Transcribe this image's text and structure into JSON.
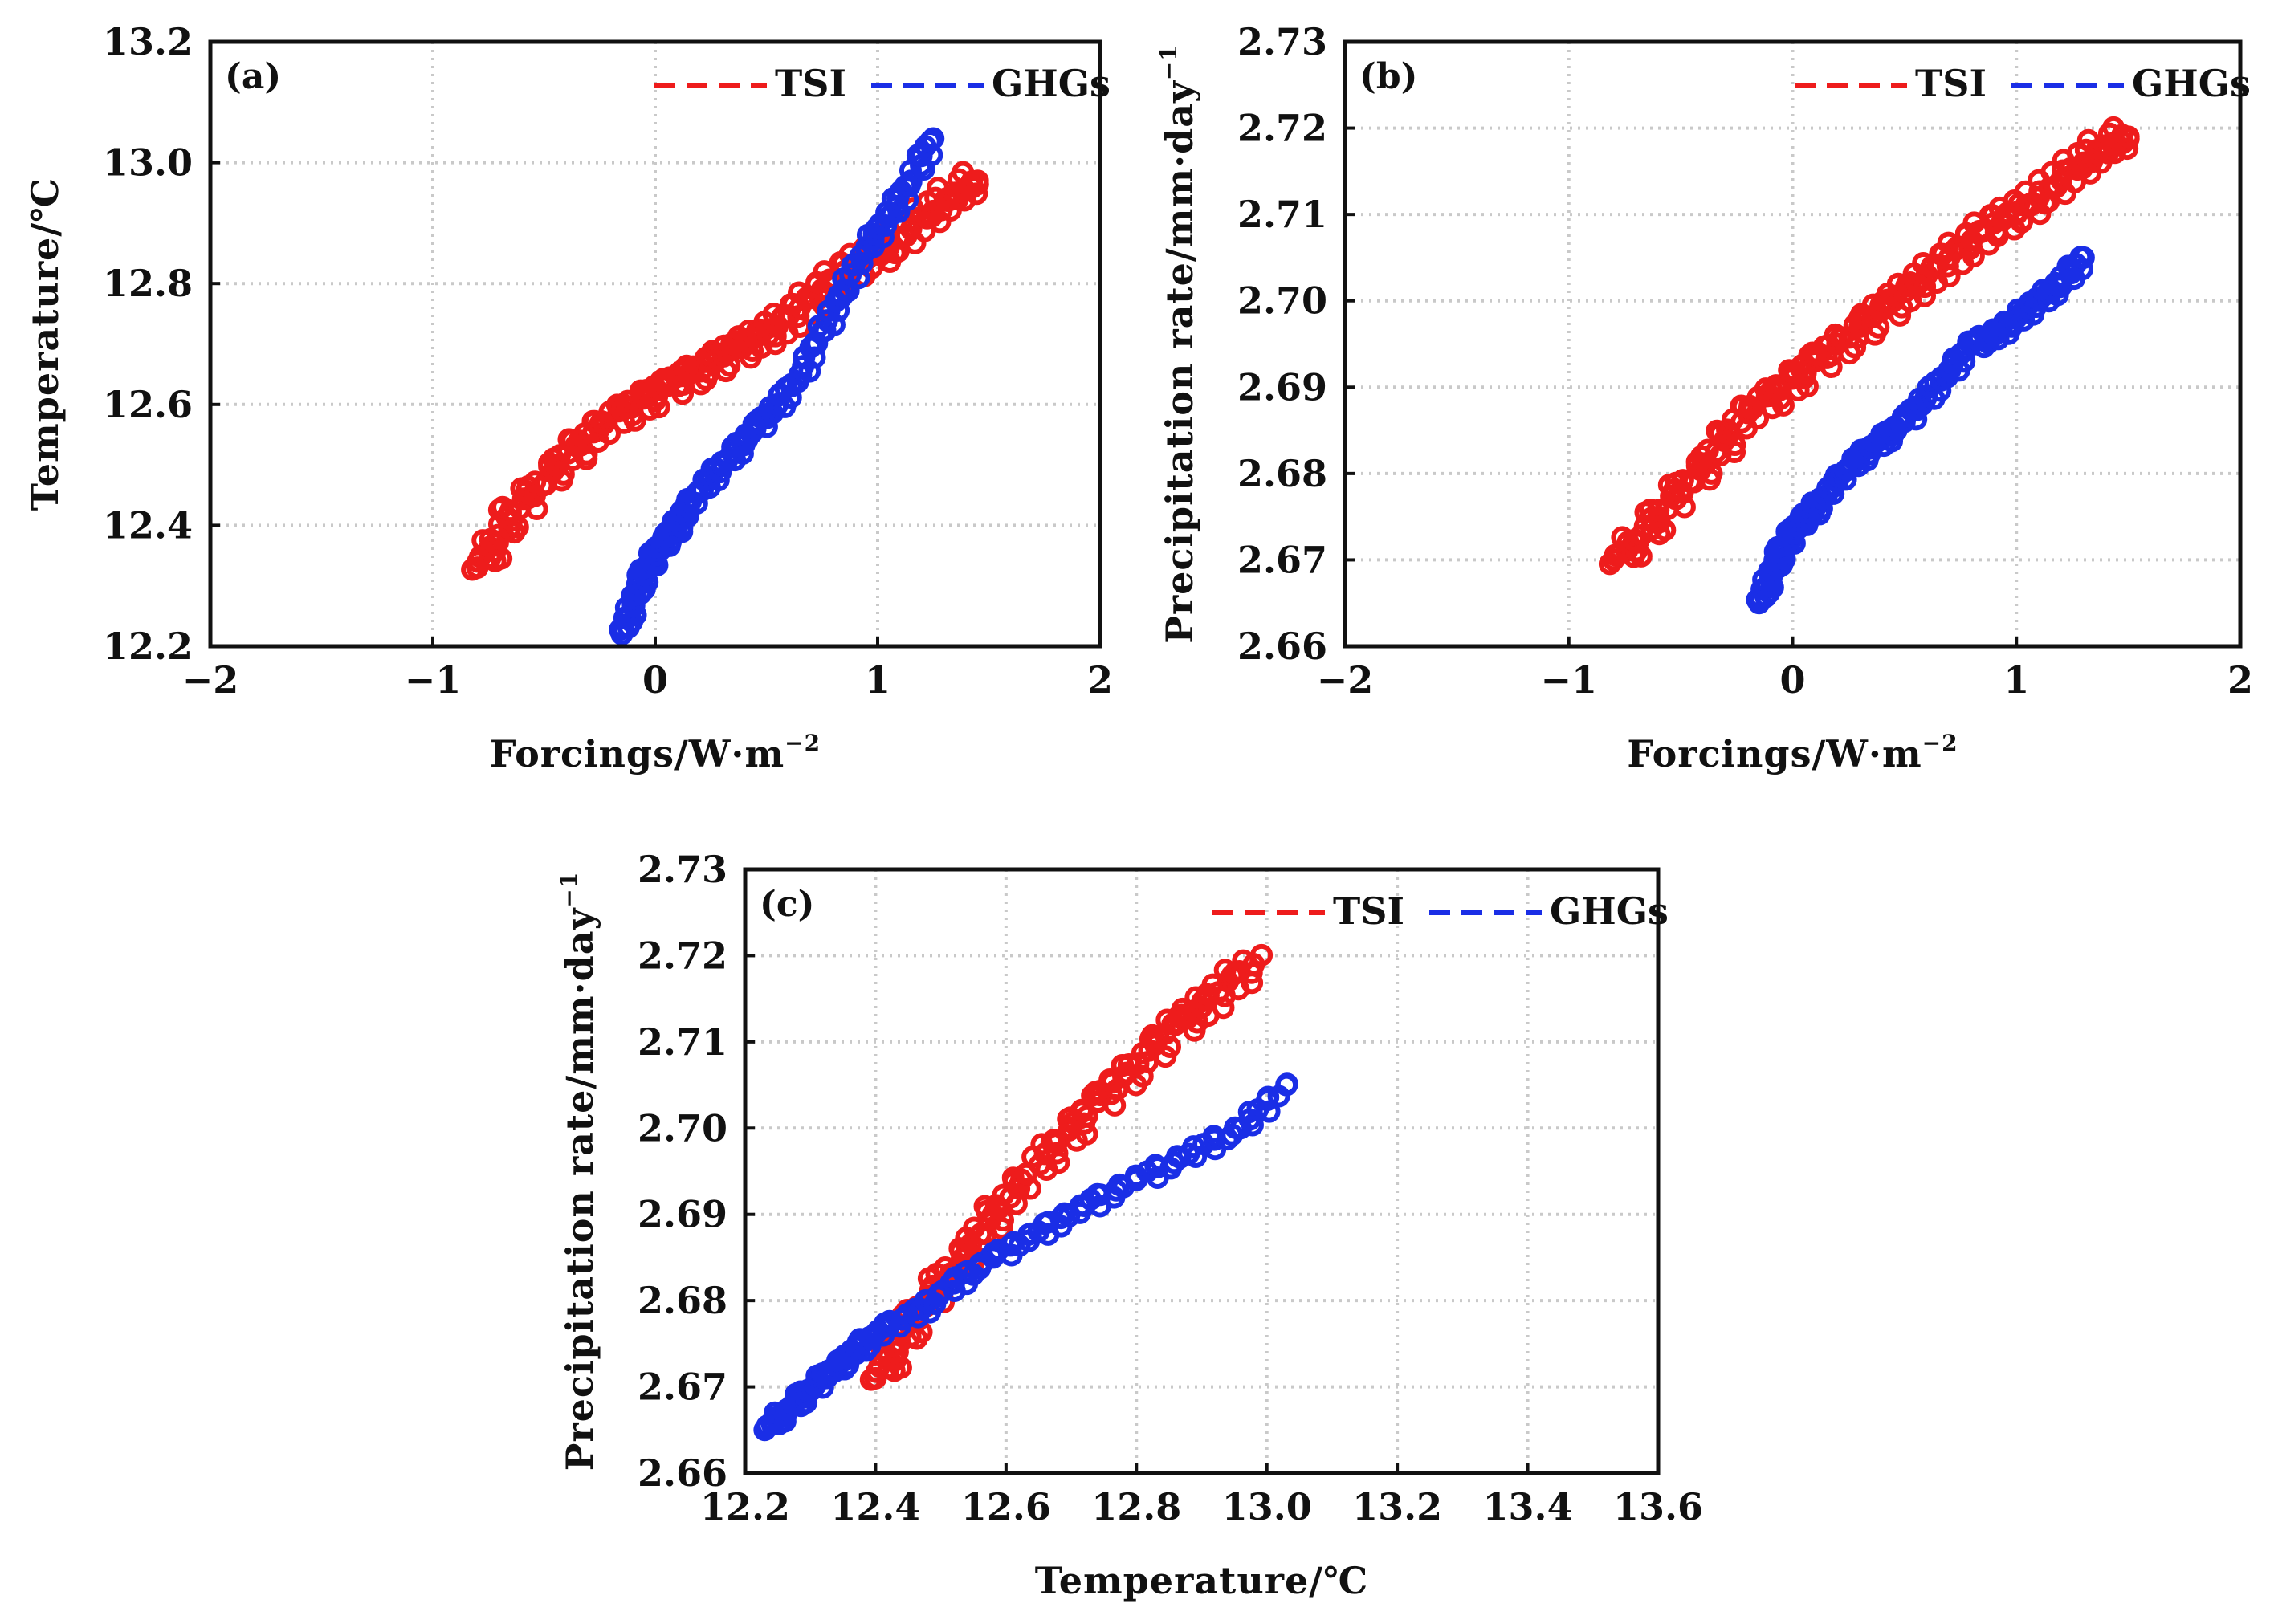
{
  "chart_data": [
    {
      "id": "a",
      "type": "scatter",
      "panel_label": "(a)",
      "xlabel": "Forcings/W·m",
      "xlabel_sup": "−2",
      "ylabel": "Temperature/℃",
      "ylabel_sup": "",
      "xlim": [
        -2,
        2
      ],
      "ylim": [
        12.2,
        13.2
      ],
      "xticks": [
        -2,
        -1,
        0,
        1,
        2
      ],
      "xtick_labels": [
        "−2",
        "−1",
        "0",
        "1",
        "2"
      ],
      "yticks": [
        12.2,
        12.4,
        12.6,
        12.8,
        13.0,
        13.2
      ],
      "ytick_labels": [
        "12.2",
        "12.4",
        "12.6",
        "12.8",
        "13.0",
        "13.2"
      ],
      "grid": true,
      "legend_position": "top-right",
      "series": [
        {
          "name": "TSI",
          "color": "#ee1c1c",
          "x": [
            -0.8,
            -0.72,
            -0.65,
            -0.55,
            -0.45,
            -0.35,
            -0.25,
            -0.15,
            -0.05,
            0.05,
            0.15,
            0.25,
            0.35,
            0.45,
            0.55,
            0.65,
            0.75,
            0.85,
            0.95,
            1.05,
            1.15,
            1.25,
            1.35,
            1.45
          ],
          "y": [
            12.33,
            12.37,
            12.42,
            12.45,
            12.5,
            12.53,
            12.56,
            12.59,
            12.61,
            12.63,
            12.65,
            12.67,
            12.69,
            12.71,
            12.73,
            12.76,
            12.79,
            12.82,
            12.84,
            12.86,
            12.89,
            12.92,
            12.95,
            12.97
          ]
        },
        {
          "name": "GHGs",
          "color": "#1a2ee6",
          "x": [
            -0.15,
            -0.1,
            -0.05,
            0.0,
            0.05,
            0.1,
            0.15,
            0.25,
            0.35,
            0.45,
            0.55,
            0.65,
            0.75,
            0.85,
            0.95,
            1.05,
            1.15,
            1.25
          ],
          "y": [
            12.22,
            12.27,
            12.32,
            12.35,
            12.38,
            12.4,
            12.43,
            12.48,
            12.52,
            12.56,
            12.6,
            12.65,
            12.72,
            12.79,
            12.86,
            12.91,
            12.97,
            13.04
          ]
        }
      ]
    },
    {
      "id": "b",
      "type": "scatter",
      "panel_label": "(b)",
      "xlabel": "Forcings/W·m",
      "xlabel_sup": "−2",
      "ylabel": "Precipitation rate/mm·day",
      "ylabel_sup": "−1",
      "xlim": [
        -2,
        2
      ],
      "ylim": [
        2.66,
        2.73
      ],
      "xticks": [
        -2,
        -1,
        0,
        1,
        2
      ],
      "xtick_labels": [
        "−2",
        "−1",
        "0",
        "1",
        "2"
      ],
      "yticks": [
        2.66,
        2.67,
        2.68,
        2.69,
        2.7,
        2.71,
        2.72,
        2.73
      ],
      "ytick_labels": [
        "2.66",
        "2.67",
        "2.68",
        "2.69",
        "2.70",
        "2.71",
        "2.72",
        "2.73"
      ],
      "grid": true,
      "legend_position": "top-right",
      "series": [
        {
          "name": "TSI",
          "color": "#ee1c1c",
          "x": [
            -0.8,
            -0.7,
            -0.6,
            -0.5,
            -0.4,
            -0.3,
            -0.2,
            -0.1,
            0.0,
            0.1,
            0.2,
            0.3,
            0.4,
            0.5,
            0.6,
            0.7,
            0.8,
            0.9,
            1.0,
            1.1,
            1.2,
            1.3,
            1.4,
            1.5
          ],
          "y": [
            2.67,
            2.672,
            2.675,
            2.678,
            2.681,
            2.684,
            2.687,
            2.689,
            2.691,
            2.693,
            2.695,
            2.697,
            2.699,
            2.701,
            2.703,
            2.705,
            2.707,
            2.709,
            2.71,
            2.712,
            2.714,
            2.716,
            2.718,
            2.719
          ]
        },
        {
          "name": "GHGs",
          "color": "#1a2ee6",
          "x": [
            -0.15,
            -0.1,
            -0.05,
            0.0,
            0.05,
            0.1,
            0.2,
            0.3,
            0.4,
            0.5,
            0.6,
            0.7,
            0.8,
            0.9,
            1.0,
            1.1,
            1.2,
            1.3
          ],
          "y": [
            2.665,
            2.668,
            2.671,
            2.673,
            2.675,
            2.676,
            2.679,
            2.682,
            2.684,
            2.686,
            2.689,
            2.692,
            2.695,
            2.696,
            2.698,
            2.7,
            2.702,
            2.705
          ]
        }
      ]
    },
    {
      "id": "c",
      "type": "scatter",
      "panel_label": "(c)",
      "xlabel": "Temperature/℃",
      "xlabel_sup": "",
      "ylabel": "Precipitation rate/mm·day",
      "ylabel_sup": "−1",
      "xlim": [
        12.2,
        13.6
      ],
      "ylim": [
        2.66,
        2.73
      ],
      "xticks": [
        12.2,
        12.4,
        12.6,
        12.8,
        13.0,
        13.2,
        13.4,
        13.6
      ],
      "xtick_labels": [
        "12.2",
        "12.4",
        "12.6",
        "12.8",
        "13.0",
        "13.2",
        "13.4",
        "13.6"
      ],
      "yticks": [
        2.66,
        2.67,
        2.68,
        2.69,
        2.7,
        2.71,
        2.72,
        2.73
      ],
      "ytick_labels": [
        "2.66",
        "2.67",
        "2.68",
        "2.69",
        "2.70",
        "2.71",
        "2.72",
        "2.73"
      ],
      "grid": true,
      "legend_position": "top-right",
      "series": [
        {
          "name": "TSI",
          "color": "#ee1c1c",
          "x": [
            12.4,
            12.43,
            12.46,
            12.5,
            12.54,
            12.58,
            12.62,
            12.66,
            12.7,
            12.74,
            12.78,
            12.82,
            12.86,
            12.9,
            12.94,
            12.98
          ],
          "y": [
            2.671,
            2.674,
            2.678,
            2.682,
            2.686,
            2.69,
            2.693,
            2.697,
            2.7,
            2.703,
            2.706,
            2.709,
            2.712,
            2.714,
            2.717,
            2.719
          ]
        },
        {
          "name": "GHGs",
          "color": "#1a2ee6",
          "x": [
            12.23,
            12.26,
            12.29,
            12.32,
            12.35,
            12.38,
            12.42,
            12.47,
            12.52,
            12.58,
            12.65,
            12.72,
            12.8,
            12.88,
            12.96,
            13.03
          ],
          "y": [
            2.665,
            2.667,
            2.669,
            2.671,
            2.673,
            2.675,
            2.677,
            2.679,
            2.682,
            2.685,
            2.688,
            2.691,
            2.694,
            2.697,
            2.7,
            2.705
          ]
        }
      ]
    }
  ]
}
